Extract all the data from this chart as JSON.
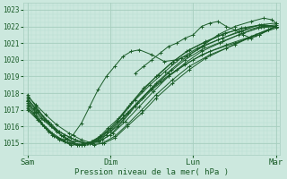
{
  "title": "",
  "xlabel": "Pression niveau de la mer( hPa )",
  "ylabel": "",
  "bg_color": "#cce8de",
  "plot_bg_color": "#cce8de",
  "grid_color_major": "#a8cfc0",
  "grid_color_minor": "#b8ddd0",
  "line_color": "#1a5c28",
  "ylim": [
    1014.3,
    1023.4
  ],
  "yticks": [
    1015,
    1016,
    1017,
    1018,
    1019,
    1020,
    1021,
    1022,
    1023
  ],
  "xtick_labels": [
    "Sam",
    "Dim",
    "Lun",
    "Mar"
  ],
  "xtick_positions": [
    0,
    1,
    2,
    3
  ],
  "x_total": 3.0,
  "lines": [
    {
      "x": [
        0.0,
        0.08,
        0.16,
        0.28,
        0.4,
        0.55,
        0.72,
        0.85,
        1.0,
        1.2,
        1.4,
        1.6,
        1.8,
        2.0,
        2.2,
        2.5,
        2.8,
        3.0
      ],
      "y": [
        1017.5,
        1017.1,
        1016.5,
        1016.0,
        1015.5,
        1015.1,
        1015.0,
        1015.2,
        1015.8,
        1016.8,
        1017.8,
        1018.7,
        1019.4,
        1020.0,
        1020.5,
        1021.0,
        1021.5,
        1022.0
      ]
    },
    {
      "x": [
        0.0,
        0.1,
        0.2,
        0.32,
        0.45,
        0.58,
        0.72,
        0.86,
        1.0,
        1.15,
        1.3,
        1.5,
        1.7,
        1.9,
        2.1,
        2.4,
        2.7,
        3.0
      ],
      "y": [
        1017.3,
        1016.9,
        1016.4,
        1015.9,
        1015.5,
        1015.2,
        1015.0,
        1015.1,
        1015.5,
        1016.3,
        1017.2,
        1018.2,
        1019.0,
        1019.7,
        1020.3,
        1020.9,
        1021.4,
        1021.9
      ]
    },
    {
      "x": [
        0.0,
        0.1,
        0.22,
        0.35,
        0.5,
        0.65,
        0.78,
        0.9,
        1.05,
        1.2,
        1.38,
        1.55,
        1.75,
        1.95,
        2.2,
        2.5,
        2.75,
        3.0
      ],
      "y": [
        1017.8,
        1017.3,
        1016.7,
        1016.1,
        1015.6,
        1015.2,
        1015.0,
        1015.0,
        1015.4,
        1016.1,
        1017.0,
        1017.9,
        1018.8,
        1019.6,
        1020.3,
        1020.9,
        1021.5,
        1022.0
      ]
    },
    {
      "x": [
        0.0,
        0.12,
        0.25,
        0.38,
        0.52,
        0.67,
        0.8,
        0.92,
        1.05,
        1.2,
        1.38,
        1.55,
        1.75,
        1.95,
        2.15,
        2.4,
        2.65,
        2.9,
        3.0
      ],
      "y": [
        1017.6,
        1017.0,
        1016.3,
        1015.7,
        1015.3,
        1015.0,
        1014.9,
        1015.0,
        1015.3,
        1016.0,
        1016.8,
        1017.7,
        1018.6,
        1019.4,
        1020.1,
        1020.7,
        1021.3,
        1021.8,
        1022.0
      ]
    },
    {
      "x": [
        0.0,
        0.08,
        0.18,
        0.3,
        0.45,
        0.6,
        0.75,
        0.88,
        1.0,
        1.15,
        1.32,
        1.5,
        1.7,
        1.9,
        2.1,
        2.35,
        2.6,
        2.85,
        3.0
      ],
      "y": [
        1017.4,
        1016.8,
        1016.1,
        1015.5,
        1015.1,
        1014.9,
        1015.0,
        1015.2,
        1015.7,
        1016.5,
        1017.4,
        1018.3,
        1019.2,
        1020.0,
        1020.6,
        1021.1,
        1021.6,
        1022.0,
        1022.1
      ]
    },
    {
      "x": [
        0.0,
        0.1,
        0.22,
        0.36,
        0.5,
        0.65,
        0.78,
        0.88,
        1.0,
        1.15,
        1.3,
        1.48,
        1.66,
        1.85,
        2.05,
        2.3,
        2.55,
        2.8,
        3.0
      ],
      "y": [
        1017.2,
        1016.6,
        1015.9,
        1015.3,
        1015.0,
        1014.9,
        1015.1,
        1015.4,
        1015.9,
        1016.7,
        1017.6,
        1018.5,
        1019.3,
        1020.1,
        1020.7,
        1021.2,
        1021.7,
        1022.1,
        1022.2
      ]
    },
    {
      "x": [
        0.0,
        0.15,
        0.3,
        0.45,
        0.6,
        0.73,
        0.85,
        0.95,
        1.08,
        1.22,
        1.38,
        1.55,
        1.73,
        1.92,
        2.12,
        2.35,
        2.58,
        2.82,
        3.0
      ],
      "y": [
        1017.1,
        1016.3,
        1015.6,
        1015.1,
        1014.9,
        1015.0,
        1015.2,
        1015.5,
        1016.0,
        1016.8,
        1017.7,
        1018.6,
        1019.4,
        1020.2,
        1020.8,
        1021.3,
        1021.7,
        1022.0,
        1022.0
      ]
    },
    {
      "x": [
        0.0,
        0.12,
        0.25,
        0.38,
        0.52,
        0.65,
        0.77,
        0.87,
        0.97,
        1.1,
        1.25,
        1.4,
        1.58,
        1.76,
        1.95,
        2.15,
        2.38,
        2.62,
        2.85,
        3.0
      ],
      "y": [
        1017.0,
        1016.4,
        1015.7,
        1015.2,
        1014.9,
        1014.9,
        1015.1,
        1015.4,
        1015.9,
        1016.5,
        1017.4,
        1018.3,
        1019.1,
        1019.9,
        1020.6,
        1021.1,
        1021.6,
        1021.9,
        1022.1,
        1022.0
      ]
    },
    {
      "x": [
        0.0,
        0.12,
        0.28,
        0.42,
        0.55,
        0.68,
        0.78,
        0.9,
        1.03,
        1.18,
        1.35,
        1.52,
        1.7,
        1.9,
        2.1,
        2.32,
        2.55,
        2.78,
        3.0
      ],
      "y": [
        1017.7,
        1016.9,
        1016.1,
        1015.4,
        1015.0,
        1014.9,
        1015.0,
        1015.2,
        1015.6,
        1016.3,
        1017.2,
        1018.1,
        1019.0,
        1019.8,
        1020.5,
        1021.0,
        1021.5,
        1021.9,
        1022.0
      ]
    },
    {
      "x": [
        0.0,
        0.1,
        0.22,
        0.35,
        0.48,
        0.62,
        0.75,
        0.86,
        0.96,
        1.08,
        1.22,
        1.38,
        1.55,
        1.73,
        1.92,
        2.12,
        2.35,
        2.58,
        2.82,
        3.0
      ],
      "y": [
        1017.9,
        1017.2,
        1016.4,
        1015.7,
        1015.2,
        1014.9,
        1015.0,
        1015.3,
        1015.7,
        1016.3,
        1017.2,
        1018.1,
        1019.0,
        1019.8,
        1020.5,
        1021.0,
        1021.5,
        1021.9,
        1022.1,
        1022.0
      ]
    }
  ],
  "peak_line": {
    "x": [
      0.0,
      0.1,
      0.2,
      0.32,
      0.45,
      0.55,
      0.65,
      0.75,
      0.85,
      0.95,
      1.05,
      1.15,
      1.25,
      1.35,
      1.5,
      1.65,
      1.8,
      1.95,
      2.1,
      2.3,
      2.5,
      2.7,
      2.85,
      2.95,
      3.0
    ],
    "y": [
      1017.5,
      1016.8,
      1016.0,
      1015.4,
      1015.2,
      1015.5,
      1016.2,
      1017.2,
      1018.2,
      1019.0,
      1019.6,
      1020.2,
      1020.5,
      1020.6,
      1020.3,
      1019.9,
      1020.0,
      1020.3,
      1020.8,
      1021.5,
      1022.0,
      1022.3,
      1022.5,
      1022.4,
      1022.2
    ]
  },
  "noisy_line": {
    "x": [
      1.3,
      1.4,
      1.5,
      1.6,
      1.7,
      1.8,
      1.9,
      2.0,
      2.1,
      2.2,
      2.3,
      2.4,
      2.5,
      2.6,
      2.7,
      2.8,
      2.9,
      3.0
    ],
    "y": [
      1019.2,
      1019.6,
      1020.0,
      1020.4,
      1020.8,
      1021.0,
      1021.3,
      1021.5,
      1022.0,
      1022.2,
      1022.3,
      1022.0,
      1021.8,
      1021.5,
      1021.3,
      1021.5,
      1021.8,
      1022.0
    ]
  }
}
